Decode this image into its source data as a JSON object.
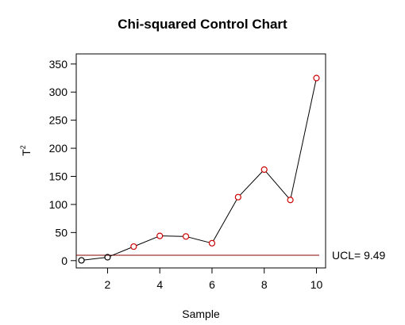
{
  "chart_data": {
    "type": "line",
    "title": "Chi-squared Control Chart",
    "xlabel": "Sample",
    "ylabel": "T",
    "ylabel_superscript": "2",
    "xlim": [
      0.8,
      10.35
    ],
    "ylim": [
      -13,
      368
    ],
    "x_ticks": [
      2,
      4,
      6,
      8,
      10
    ],
    "y_ticks": [
      0,
      50,
      100,
      150,
      200,
      250,
      300,
      350
    ],
    "x": [
      1,
      2,
      3,
      4,
      5,
      6,
      7,
      8,
      9,
      10
    ],
    "values": [
      0.5,
      6,
      25,
      44,
      43,
      31,
      113,
      162,
      108,
      325
    ],
    "out_of_control": [
      false,
      false,
      true,
      true,
      true,
      true,
      true,
      true,
      true,
      true
    ],
    "ucl": {
      "value": 9.49,
      "label": "UCL= 9.49"
    },
    "grid": false,
    "legend": "none",
    "colors": {
      "line": "#000000",
      "in_control_point": "#000000",
      "out_of_control_point": "#cc0000",
      "ucl_line": "#8b0000",
      "axis": "#000000"
    }
  }
}
